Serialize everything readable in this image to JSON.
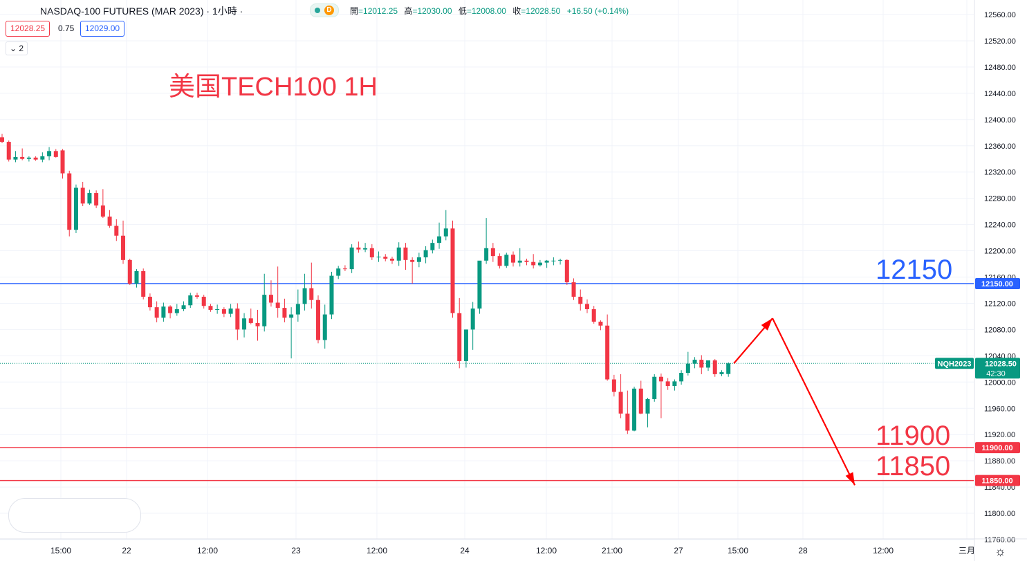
{
  "header": {
    "symbol_title": "NASDAQ-100 FUTURES (MAR 2023) · 1小時 ·",
    "status_badge": "D",
    "ohlc": {
      "open_label": "開",
      "open": "=12012.25",
      "high_label": "高",
      "high": "=12030.00",
      "low_label": "低",
      "low": "=12008.00",
      "close_label": "收",
      "close": "=12028.50",
      "change": "+16.50 (+0.14%)"
    },
    "sell_price": "12028.25",
    "spread": "0.75",
    "buy_price": "12029.00",
    "indicator_count": "2"
  },
  "annotations": {
    "title": "美国TECH100 1H",
    "level_12150": "12150",
    "level_11900": "11900",
    "level_11850": "11850"
  },
  "colors": {
    "up": "#089981",
    "down": "#f23645",
    "resistance": "#2962ff",
    "support": "#f23645",
    "arrow": "#ff0000",
    "grid": "#f0f3fa"
  },
  "chart_data": {
    "type": "candlestick",
    "symbol": "NQH2023",
    "interval": "1小時",
    "ylim": [
      11760,
      12560
    ],
    "y_ticks": [
      "12560.00",
      "12520.00",
      "12480.00",
      "12440.00",
      "12400.00",
      "12360.00",
      "12320.00",
      "12280.00",
      "12240.00",
      "12200.00",
      "12160.00",
      "12120.00",
      "12080.00",
      "12040.00",
      "12000.00",
      "11960.00",
      "11920.00",
      "11880.00",
      "11840.00",
      "11800.00",
      "11760.00"
    ],
    "x_ticks": [
      "15:00",
      "22",
      "12:00",
      "23",
      "12:00",
      "24",
      "12:00",
      "21:00",
      "27",
      "15:00",
      "28",
      "12:00",
      "三月"
    ],
    "horizontal_lines": [
      {
        "price": 12150,
        "label": "12150.00",
        "color": "#2962ff"
      },
      {
        "price": 11900,
        "label": "11900.00",
        "color": "#f23645"
      },
      {
        "price": 11850,
        "label": "11850.00",
        "color": "#f23645"
      }
    ],
    "current_price": {
      "price": 12028.5,
      "label": "12028.50",
      "symbol_label": "NQH2023",
      "countdown": "42:30"
    },
    "candles": [
      [
        12373,
        12378,
        12364,
        12366
      ],
      [
        12366,
        12368,
        12336,
        12339
      ],
      [
        12339,
        12352,
        12335,
        12343
      ],
      [
        12343,
        12356,
        12338,
        12340
      ],
      [
        12340,
        12344,
        12336,
        12342
      ],
      [
        12342,
        12344,
        12337,
        12339
      ],
      [
        12339,
        12350,
        12335,
        12344
      ],
      [
        12344,
        12358,
        12338,
        12352
      ],
      [
        12352,
        12355,
        12342,
        12343
      ],
      [
        12353,
        12355,
        12310,
        12318
      ],
      [
        12318,
        12322,
        12222,
        12232
      ],
      [
        12232,
        12301,
        12227,
        12296
      ],
      [
        12296,
        12305,
        12268,
        12272
      ],
      [
        12272,
        12293,
        12270,
        12288
      ],
      [
        12288,
        12292,
        12265,
        12269
      ],
      [
        12269,
        12294,
        12250,
        12252
      ],
      [
        12252,
        12262,
        12235,
        12238
      ],
      [
        12238,
        12248,
        12215,
        12223
      ],
      [
        12223,
        12246,
        12180,
        12186
      ],
      [
        12186,
        12188,
        12148,
        12150
      ],
      [
        12150,
        12172,
        12144,
        12169
      ],
      [
        12169,
        12173,
        12126,
        12130
      ],
      [
        12130,
        12135,
        12109,
        12114
      ],
      [
        12114,
        12123,
        12091,
        12098
      ],
      [
        12098,
        12121,
        12092,
        12115
      ],
      [
        12115,
        12117,
        12097,
        12105
      ],
      [
        12105,
        12119,
        12101,
        12111
      ],
      [
        12111,
        12123,
        12108,
        12117
      ],
      [
        12117,
        12136,
        12113,
        12132
      ],
      [
        12132,
        12136,
        12127,
        12130
      ],
      [
        12130,
        12133,
        12112,
        12116
      ],
      [
        12116,
        12119,
        12107,
        12110
      ],
      [
        12110,
        12118,
        12104,
        12111
      ],
      [
        12111,
        12114,
        12099,
        12104
      ],
      [
        12104,
        12119,
        12099,
        12112
      ],
      [
        12112,
        12120,
        12064,
        12080
      ],
      [
        12080,
        12105,
        12068,
        12097
      ],
      [
        12097,
        12112,
        12088,
        12090
      ],
      [
        12090,
        12110,
        12063,
        12085
      ],
      [
        12085,
        12165,
        12077,
        12133
      ],
      [
        12133,
        12155,
        12115,
        12121
      ],
      [
        12121,
        12176,
        12098,
        12113
      ],
      [
        12113,
        12127,
        12091,
        12098
      ],
      [
        12098,
        12114,
        12036,
        12103
      ],
      [
        12103,
        12141,
        12092,
        12119
      ],
      [
        12119,
        12165,
        12109,
        12143
      ],
      [
        12143,
        12182,
        12112,
        12125
      ],
      [
        12125,
        12132,
        12059,
        12064
      ],
      [
        12064,
        12118,
        12051,
        12103
      ],
      [
        12103,
        12168,
        12096,
        12162
      ],
      [
        12162,
        12177,
        12157,
        12173
      ],
      [
        12173,
        12178,
        12169,
        12172
      ],
      [
        12172,
        12210,
        12166,
        12205
      ],
      [
        12205,
        12214,
        12197,
        12202
      ],
      [
        12202,
        12212,
        12198,
        12204
      ],
      [
        12204,
        12210,
        12186,
        12190
      ],
      [
        12190,
        12199,
        12183,
        12191
      ],
      [
        12191,
        12195,
        12184,
        12188
      ],
      [
        12188,
        12191,
        12180,
        12185
      ],
      [
        12185,
        12213,
        12177,
        12205
      ],
      [
        12205,
        12212,
        12171,
        12186
      ],
      [
        12186,
        12190,
        12150,
        12183
      ],
      [
        12183,
        12197,
        12175,
        12190
      ],
      [
        12190,
        12207,
        12181,
        12201
      ],
      [
        12201,
        12217,
        12196,
        12212
      ],
      [
        12212,
        12243,
        12203,
        12222
      ],
      [
        12222,
        12262,
        12216,
        12234
      ],
      [
        12234,
        12246,
        12098,
        12105
      ],
      [
        12105,
        12128,
        12021,
        12032
      ],
      [
        12032,
        12080,
        12022,
        12080
      ],
      [
        12080,
        12122,
        12049,
        12112
      ],
      [
        12112,
        12179,
        12104,
        12185
      ],
      [
        12185,
        12250,
        12180,
        12204
      ],
      [
        12204,
        12212,
        12183,
        12192
      ],
      [
        12192,
        12196,
        12173,
        12177
      ],
      [
        12177,
        12197,
        12174,
        12194
      ],
      [
        12194,
        12199,
        12176,
        12182
      ],
      [
        12182,
        12204,
        12176,
        12185
      ],
      [
        12185,
        12188,
        12178,
        12183
      ],
      [
        12183,
        12195,
        12173,
        12178
      ],
      [
        12178,
        12186,
        12176,
        12182
      ],
      [
        12182,
        12186,
        12174,
        12185
      ],
      [
        12185,
        12190,
        12178,
        12185
      ],
      [
        12185,
        12188,
        12179,
        12186
      ],
      [
        12186,
        12187,
        12148,
        12152
      ],
      [
        12152,
        12158,
        12125,
        12130
      ],
      [
        12130,
        12141,
        12109,
        12119
      ],
      [
        12119,
        12126,
        12105,
        12111
      ],
      [
        12111,
        12116,
        12089,
        12092
      ],
      [
        12092,
        12094,
        12079,
        12086
      ],
      [
        12086,
        12103,
        12002,
        12004
      ],
      [
        12004,
        12011,
        11978,
        11985
      ],
      [
        11985,
        12012,
        11945,
        11952
      ],
      [
        11952,
        11987,
        11921,
        11926
      ],
      [
        11926,
        11993,
        11925,
        11990
      ],
      [
        11990,
        12002,
        11951,
        11952
      ],
      [
        11952,
        11976,
        11931,
        11974
      ],
      [
        11974,
        12012,
        11970,
        12008
      ],
      [
        12008,
        12013,
        11945,
        12001
      ],
      [
        12001,
        12006,
        11988,
        11994
      ],
      [
        11994,
        12004,
        11987,
        12001
      ],
      [
        12001,
        12018,
        11996,
        12014
      ],
      [
        12014,
        12046,
        12010,
        12028
      ],
      [
        12028,
        12038,
        12021,
        12034
      ],
      [
        12034,
        12041,
        12012,
        12022
      ],
      [
        12022,
        12033,
        12017,
        12033
      ],
      [
        12033,
        12035,
        12008,
        12012
      ],
      [
        12012,
        12018,
        12009,
        12015
      ],
      [
        12012.25,
        12030,
        12008,
        12028.5
      ]
    ],
    "projection": [
      {
        "start_price": 12028.5,
        "end_price": 12095,
        "end_label": "28"
      },
      {
        "start_price": 12095,
        "end_price": 11845,
        "end_label": "12:00"
      }
    ]
  }
}
